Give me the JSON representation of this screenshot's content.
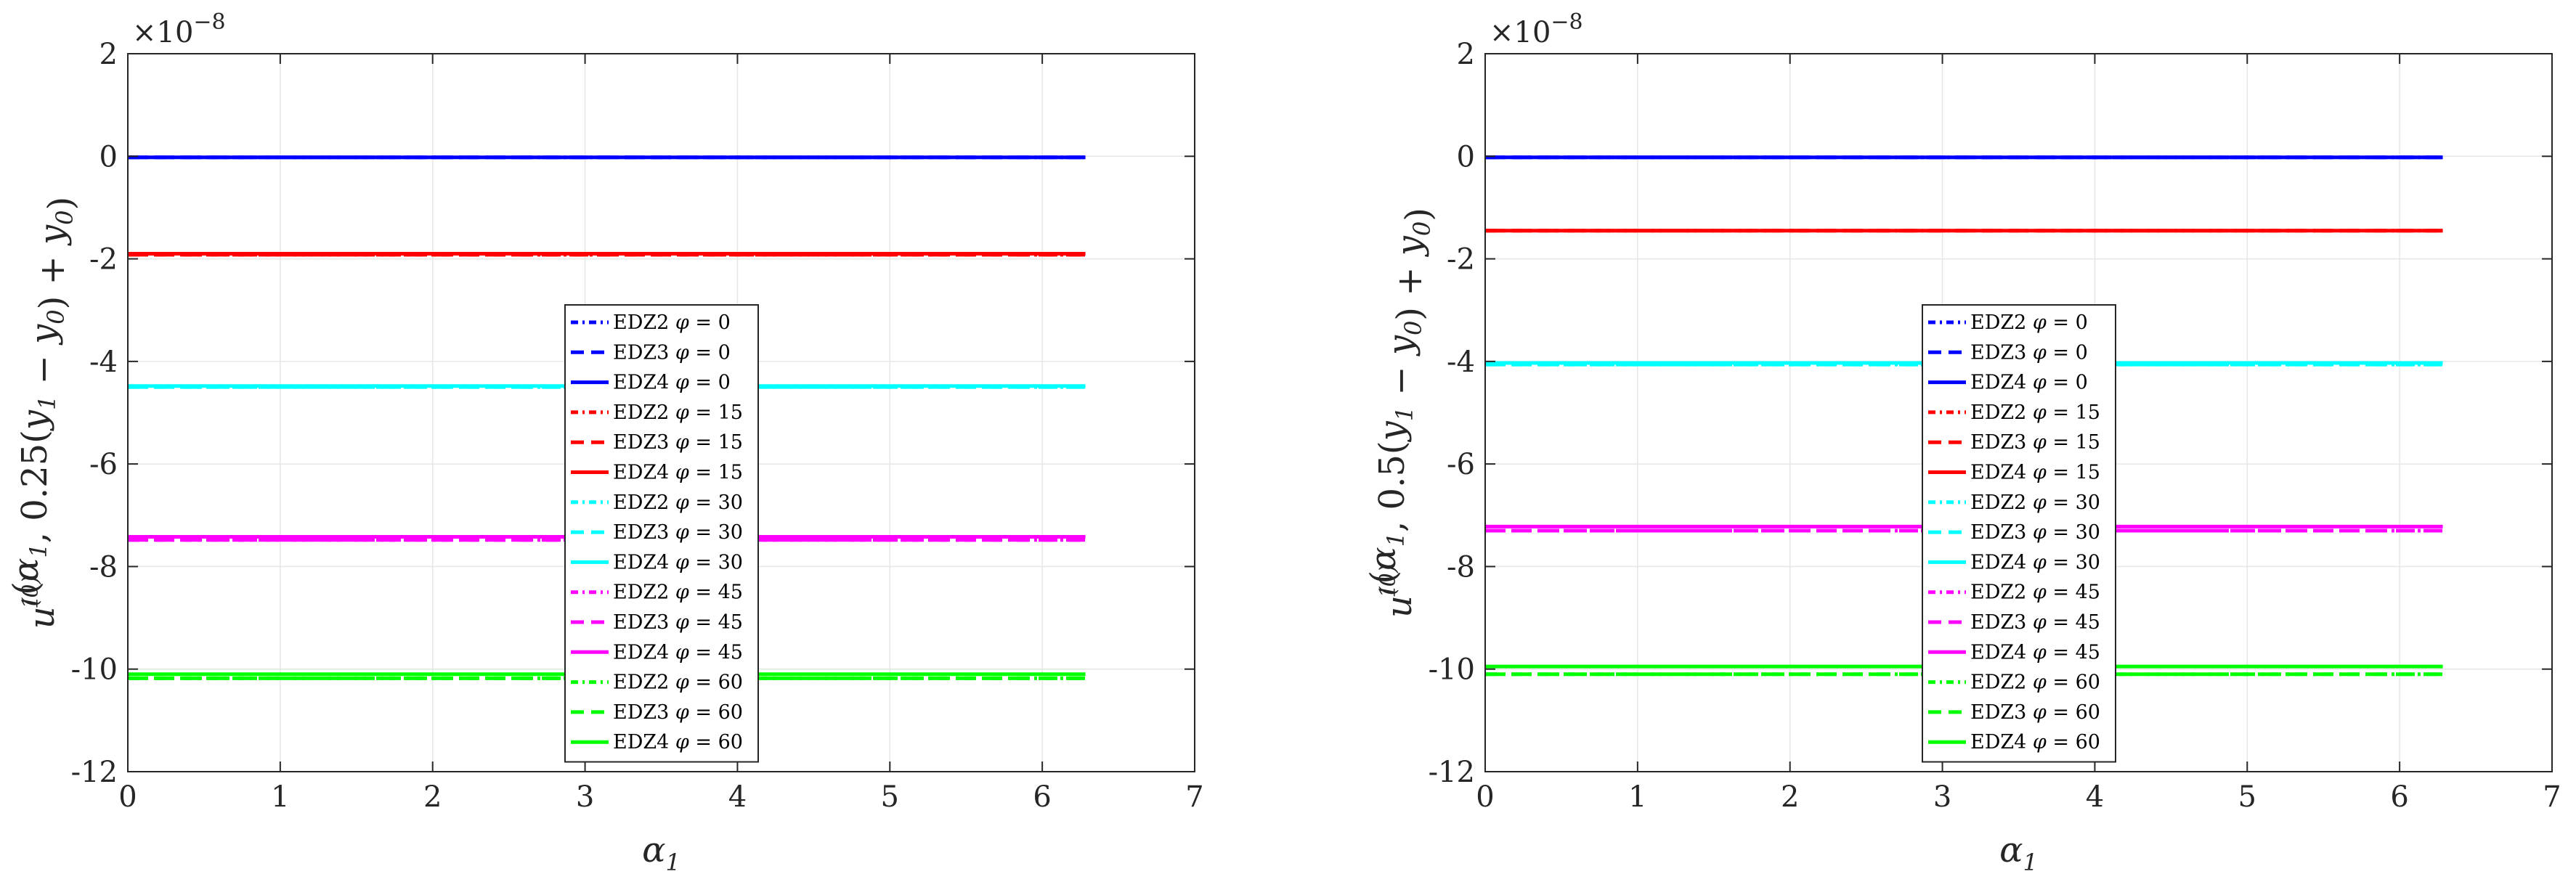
{
  "chart_data": [
    {
      "type": "line",
      "title": "",
      "xlabel": "α1",
      "ylabel": "u1(0)(α1, 0.25(y1 − y0) + y0)",
      "y_multiplier": "×10−8",
      "xlim": [
        0,
        7
      ],
      "ylim": [
        -12,
        2
      ],
      "x_ticks": [
        0,
        1,
        2,
        3,
        4,
        5,
        6,
        7
      ],
      "y_ticks": [
        2,
        0,
        -2,
        -4,
        -6,
        -8,
        -10,
        -12
      ],
      "y_tick_labels": [
        "2",
        "0",
        "-2",
        "-4",
        "-6",
        "-8",
        "-10",
        "-12"
      ],
      "x_range": [
        0,
        6.2832
      ],
      "grid": true,
      "legend_position": "center",
      "series": [
        {
          "name": "EDZ2 φ = 0",
          "color": "#0000ff",
          "style": "dashdot",
          "y": -0.02
        },
        {
          "name": "EDZ3 φ = 0",
          "color": "#0000ff",
          "style": "dashed",
          "y": -0.02
        },
        {
          "name": "EDZ4 φ = 0",
          "color": "#0000ff",
          "style": "solid",
          "y": -0.02
        },
        {
          "name": "EDZ2 φ = 15",
          "color": "#ff0000",
          "style": "dashdot",
          "y": -1.92
        },
        {
          "name": "EDZ3 φ = 15",
          "color": "#ff0000",
          "style": "dashed",
          "y": -1.92
        },
        {
          "name": "EDZ4 φ = 15",
          "color": "#ff0000",
          "style": "solid",
          "y": -1.9
        },
        {
          "name": "EDZ2 φ = 30",
          "color": "#00ffff",
          "style": "dashdot",
          "y": -4.5
        },
        {
          "name": "EDZ3 φ = 30",
          "color": "#00ffff",
          "style": "dashed",
          "y": -4.5
        },
        {
          "name": "EDZ4 φ = 30",
          "color": "#00ffff",
          "style": "solid",
          "y": -4.48
        },
        {
          "name": "EDZ2 φ = 45",
          "color": "#ff00ff",
          "style": "dashdot",
          "y": -7.48
        },
        {
          "name": "EDZ3 φ = 45",
          "color": "#ff00ff",
          "style": "dashed",
          "y": -7.48
        },
        {
          "name": "EDZ4 φ = 45",
          "color": "#ff00ff",
          "style": "solid",
          "y": -7.42
        },
        {
          "name": "EDZ2 φ = 60",
          "color": "#00ff00",
          "style": "dashdot",
          "y": -10.18
        },
        {
          "name": "EDZ3 φ = 60",
          "color": "#00ff00",
          "style": "dashed",
          "y": -10.18
        },
        {
          "name": "EDZ4 φ = 60",
          "color": "#00ff00",
          "style": "solid",
          "y": -10.1
        }
      ]
    },
    {
      "type": "line",
      "title": "",
      "xlabel": "α1",
      "ylabel": "u1(0)(α1, 0.5(y1 − y0) + y0)",
      "y_multiplier": "×10−8",
      "xlim": [
        0,
        7
      ],
      "ylim": [
        -12,
        2
      ],
      "x_ticks": [
        0,
        1,
        2,
        3,
        4,
        5,
        6,
        7
      ],
      "y_ticks": [
        2,
        0,
        -2,
        -4,
        -6,
        -8,
        -10,
        -12
      ],
      "y_tick_labels": [
        "2",
        "0",
        "-2",
        "-4",
        "-6",
        "-8",
        "-10",
        "-12"
      ],
      "x_range": [
        0,
        6.2832
      ],
      "grid": true,
      "legend_position": "center",
      "series": [
        {
          "name": "EDZ2 φ = 0",
          "color": "#0000ff",
          "style": "dashdot",
          "y": -0.02
        },
        {
          "name": "EDZ3 φ = 0",
          "color": "#0000ff",
          "style": "dashed",
          "y": -0.02
        },
        {
          "name": "EDZ4 φ = 0",
          "color": "#0000ff",
          "style": "solid",
          "y": -0.02
        },
        {
          "name": "EDZ2 φ = 15",
          "color": "#ff0000",
          "style": "dashdot",
          "y": -1.45
        },
        {
          "name": "EDZ3 φ = 15",
          "color": "#ff0000",
          "style": "dashed",
          "y": -1.45
        },
        {
          "name": "EDZ4 φ = 15",
          "color": "#ff0000",
          "style": "solid",
          "y": -1.45
        },
        {
          "name": "EDZ2 φ = 30",
          "color": "#00ffff",
          "style": "dashdot",
          "y": -4.06
        },
        {
          "name": "EDZ3 φ = 30",
          "color": "#00ffff",
          "style": "dashed",
          "y": -4.06
        },
        {
          "name": "EDZ4 φ = 30",
          "color": "#00ffff",
          "style": "solid",
          "y": -4.03
        },
        {
          "name": "EDZ2 φ = 45",
          "color": "#ff00ff",
          "style": "dashdot",
          "y": -7.3
        },
        {
          "name": "EDZ3 φ = 45",
          "color": "#ff00ff",
          "style": "dashed",
          "y": -7.3
        },
        {
          "name": "EDZ4 φ = 45",
          "color": "#ff00ff",
          "style": "solid",
          "y": -7.22
        },
        {
          "name": "EDZ2 φ = 60",
          "color": "#00ff00",
          "style": "dashdot",
          "y": -10.1
        },
        {
          "name": "EDZ3 φ = 60",
          "color": "#00ff00",
          "style": "dashed",
          "y": -10.1
        },
        {
          "name": "EDZ4 φ = 60",
          "color": "#00ff00",
          "style": "solid",
          "y": -9.95
        }
      ]
    }
  ]
}
